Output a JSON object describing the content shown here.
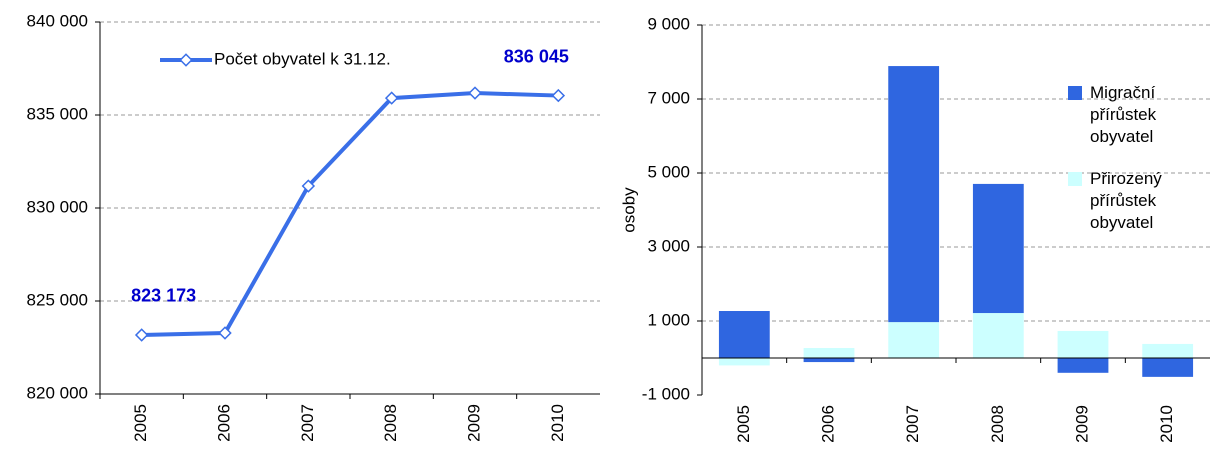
{
  "chart_data": [
    {
      "type": "line",
      "categories": [
        "2005",
        "2006",
        "2007",
        "2008",
        "2009",
        "2010"
      ],
      "series": [
        {
          "name": "Počet obyvatel k 31.12.",
          "color": "#3a6fe8",
          "values": [
            823173,
            823280,
            831180,
            835910,
            836180,
            836045
          ],
          "value_labels": [
            "823 173",
            null,
            null,
            null,
            null,
            "836 045"
          ]
        }
      ],
      "ylim": [
        820000,
        840000
      ],
      "yticks": [
        {
          "value": 820000,
          "label": "820 000"
        },
        {
          "value": 825000,
          "label": "825 000"
        },
        {
          "value": 830000,
          "label": "830 000"
        },
        {
          "value": 835000,
          "label": "835 000"
        },
        {
          "value": 840000,
          "label": "840 000"
        }
      ],
      "grid": true,
      "legend": "top"
    },
    {
      "type": "stacked_bar",
      "categories": [
        "2005",
        "2006",
        "2007",
        "2008",
        "2009",
        "2010"
      ],
      "y_label": "osoby",
      "series": [
        {
          "name": "Přirozený přírůstek obyvatel",
          "color": "#ccffff",
          "values": [
            -200,
            270,
            970,
            1215,
            730,
            380
          ]
        },
        {
          "name": "Migrační přírůstek obyvatel",
          "color": "#2f66e0",
          "values": [
            1270,
            -110,
            6920,
            3490,
            -400,
            -510
          ]
        }
      ],
      "ylim": [
        -1000,
        9000
      ],
      "yticks": [
        {
          "value": -1000,
          "label": "-1 000"
        },
        {
          "value": 1000,
          "label": "1 000"
        },
        {
          "value": 3000,
          "label": "3 000"
        },
        {
          "value": 5000,
          "label": "5 000"
        },
        {
          "value": 7000,
          "label": "7 000"
        },
        {
          "value": 9000,
          "label": "9 000"
        }
      ],
      "grid": true,
      "legend": "top-right"
    }
  ]
}
